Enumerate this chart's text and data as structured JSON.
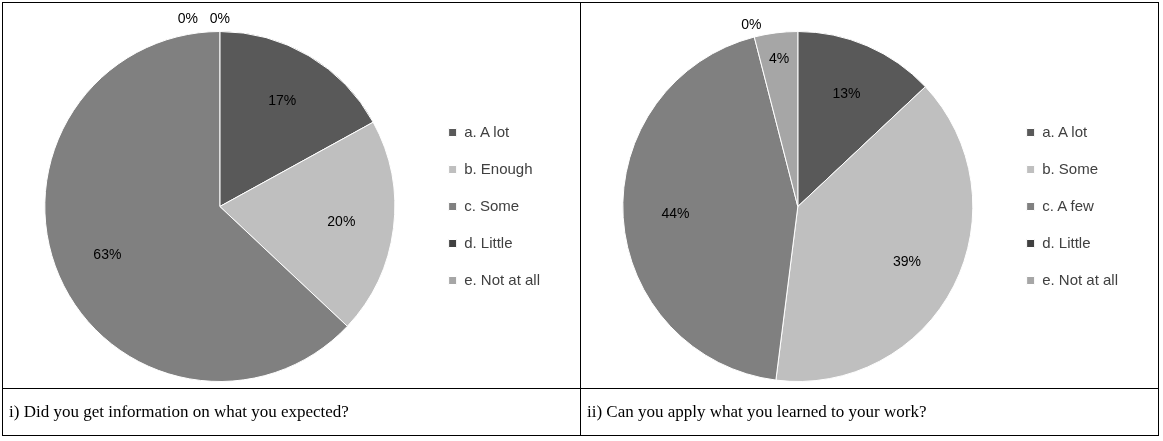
{
  "chart_data": [
    {
      "type": "pie",
      "title": "i) Did you get information on what you expected?",
      "categories": [
        "a. A lot",
        "b. Enough",
        "c. Some",
        "d. Little",
        "e. Not at all"
      ],
      "values": [
        17,
        20,
        63,
        0,
        0
      ],
      "colors": [
        "#595959",
        "#bfbfbf",
        "#808080",
        "#404040",
        "#a6a6a6"
      ],
      "value_labels": [
        "17%",
        "20%",
        "63%",
        "0%",
        "0%"
      ],
      "legend": "right"
    },
    {
      "type": "pie",
      "title": "ii) Can you apply what you learned to your work?",
      "categories": [
        "a. A lot",
        "b. Some",
        "c. A few",
        "d. Little",
        "e. Not at all"
      ],
      "values": [
        13,
        39,
        44,
        0,
        4
      ],
      "colors": [
        "#595959",
        "#bfbfbf",
        "#808080",
        "#404040",
        "#a6a6a6"
      ],
      "value_labels": [
        "13%",
        "39%",
        "44%",
        "0%",
        "4%"
      ],
      "legend": "right"
    }
  ]
}
